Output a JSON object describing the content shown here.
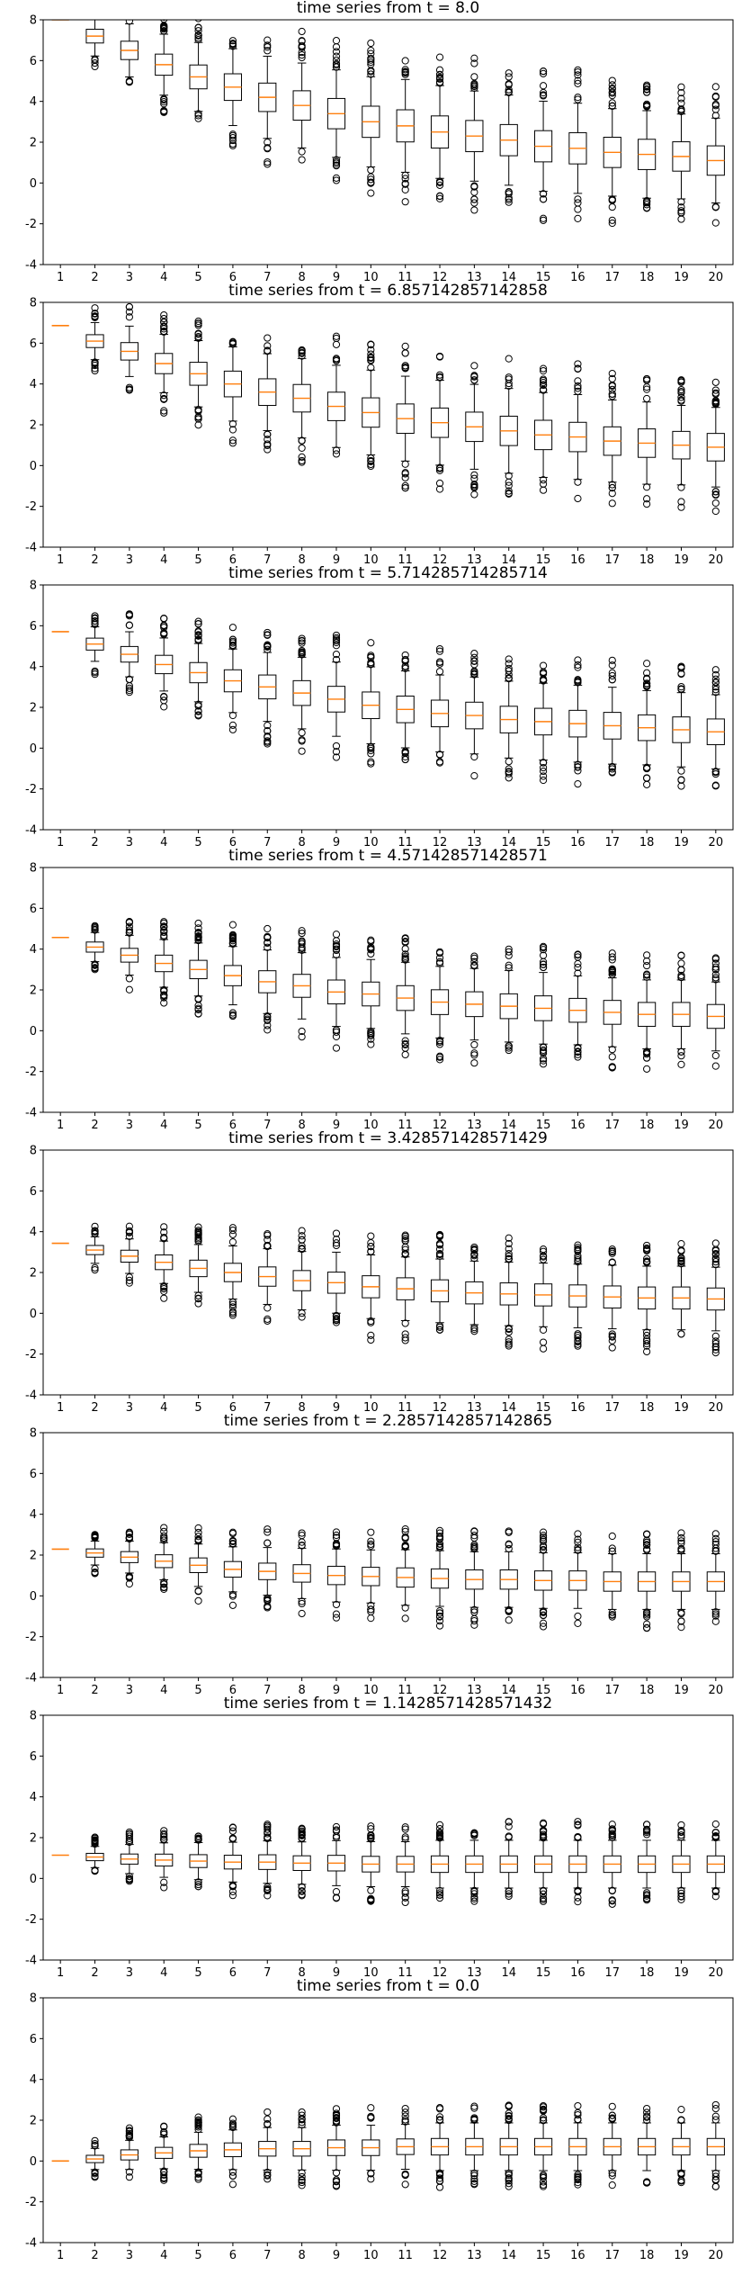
{
  "colors": {
    "box": "#000000",
    "median": "#ff7f0e",
    "frame": "#000000",
    "background": "#ffffff"
  },
  "chart_data": [
    {
      "type": "boxplot",
      "title": "time series from t = 8.0",
      "ylim": [
        -4,
        8
      ],
      "yticks": [
        -4,
        -2,
        0,
        2,
        4,
        6,
        8
      ],
      "categories": [
        "1",
        "2",
        "3",
        "4",
        "5",
        "6",
        "7",
        "8",
        "9",
        "10",
        "11",
        "12",
        "13",
        "14",
        "15",
        "16",
        "17",
        "18",
        "19",
        "20"
      ],
      "medians": [
        8.0,
        7.2,
        6.5,
        5.8,
        5.2,
        4.7,
        4.2,
        3.8,
        3.4,
        3.0,
        2.8,
        2.5,
        2.3,
        2.1,
        1.8,
        1.7,
        1.5,
        1.4,
        1.3,
        1.1
      ],
      "spread": [
        0.0,
        0.75,
        1.0,
        1.15,
        1.3,
        1.45,
        1.55,
        1.6,
        1.65,
        1.7,
        1.75,
        1.75,
        1.7,
        1.7,
        1.7,
        1.7,
        1.65,
        1.65,
        1.6,
        1.6
      ]
    },
    {
      "type": "boxplot",
      "title": "time series from t = 6.857142857142858",
      "ylim": [
        -4,
        8
      ],
      "yticks": [
        -4,
        -2,
        0,
        2,
        4,
        6,
        8
      ],
      "categories": [
        "1",
        "2",
        "3",
        "4",
        "5",
        "6",
        "7",
        "8",
        "9",
        "10",
        "11",
        "12",
        "13",
        "14",
        "15",
        "16",
        "17",
        "18",
        "19",
        "20"
      ],
      "medians": [
        6.86,
        6.1,
        5.6,
        5.0,
        4.5,
        4.0,
        3.6,
        3.3,
        2.9,
        2.6,
        2.3,
        2.1,
        1.9,
        1.7,
        1.5,
        1.4,
        1.2,
        1.1,
        1.0,
        0.9
      ],
      "spread": [
        0.0,
        0.7,
        0.95,
        1.1,
        1.25,
        1.4,
        1.45,
        1.5,
        1.55,
        1.6,
        1.6,
        1.6,
        1.6,
        1.6,
        1.6,
        1.6,
        1.55,
        1.55,
        1.5,
        1.5
      ]
    },
    {
      "type": "boxplot",
      "title": "time series from t = 5.714285714285714",
      "ylim": [
        -4,
        8
      ],
      "yticks": [
        -4,
        -2,
        0,
        2,
        4,
        6,
        8
      ],
      "categories": [
        "1",
        "2",
        "3",
        "4",
        "5",
        "6",
        "7",
        "8",
        "9",
        "10",
        "11",
        "12",
        "13",
        "14",
        "15",
        "16",
        "17",
        "18",
        "19",
        "20"
      ],
      "medians": [
        5.71,
        5.1,
        4.6,
        4.1,
        3.7,
        3.3,
        3.0,
        2.7,
        2.4,
        2.1,
        1.9,
        1.7,
        1.6,
        1.4,
        1.3,
        1.2,
        1.1,
        1.0,
        0.9,
        0.8
      ],
      "spread": [
        0.0,
        0.65,
        0.85,
        1.0,
        1.1,
        1.2,
        1.3,
        1.35,
        1.4,
        1.45,
        1.45,
        1.45,
        1.45,
        1.45,
        1.45,
        1.45,
        1.45,
        1.4,
        1.4,
        1.4
      ]
    },
    {
      "type": "boxplot",
      "title": "time series from t = 4.571428571428571",
      "ylim": [
        -4,
        8
      ],
      "yticks": [
        -4,
        -2,
        0,
        2,
        4,
        6,
        8
      ],
      "categories": [
        "1",
        "2",
        "3",
        "4",
        "5",
        "6",
        "7",
        "8",
        "9",
        "10",
        "11",
        "12",
        "13",
        "14",
        "15",
        "16",
        "17",
        "18",
        "19",
        "20"
      ],
      "medians": [
        4.57,
        4.1,
        3.7,
        3.3,
        3.0,
        2.7,
        2.4,
        2.2,
        1.9,
        1.8,
        1.6,
        1.4,
        1.3,
        1.2,
        1.1,
        1.0,
        0.9,
        0.8,
        0.8,
        0.7
      ],
      "spread": [
        0.0,
        0.55,
        0.75,
        0.9,
        1.0,
        1.1,
        1.2,
        1.25,
        1.3,
        1.3,
        1.35,
        1.35,
        1.35,
        1.35,
        1.35,
        1.3,
        1.3,
        1.3,
        1.3,
        1.3
      ]
    },
    {
      "type": "boxplot",
      "title": "time series from t = 3.428571428571429",
      "ylim": [
        -4,
        8
      ],
      "yticks": [
        -4,
        -2,
        0,
        2,
        4,
        6,
        8
      ],
      "categories": [
        "1",
        "2",
        "3",
        "4",
        "5",
        "6",
        "7",
        "8",
        "9",
        "10",
        "11",
        "12",
        "13",
        "14",
        "15",
        "16",
        "17",
        "18",
        "19",
        "20"
      ],
      "medians": [
        3.43,
        3.1,
        2.8,
        2.5,
        2.2,
        2.0,
        1.8,
        1.6,
        1.5,
        1.3,
        1.2,
        1.1,
        1.0,
        0.95,
        0.9,
        0.85,
        0.8,
        0.75,
        0.75,
        0.7
      ],
      "spread": [
        0.0,
        0.5,
        0.65,
        0.8,
        0.9,
        1.0,
        1.05,
        1.1,
        1.15,
        1.2,
        1.2,
        1.2,
        1.2,
        1.2,
        1.2,
        1.2,
        1.2,
        1.2,
        1.2,
        1.2
      ]
    },
    {
      "type": "boxplot",
      "title": "time series from t = 2.2857142857142865",
      "ylim": [
        -4,
        8
      ],
      "yticks": [
        -4,
        -2,
        0,
        2,
        4,
        6,
        8
      ],
      "categories": [
        "1",
        "2",
        "3",
        "4",
        "5",
        "6",
        "7",
        "8",
        "9",
        "10",
        "11",
        "12",
        "13",
        "14",
        "15",
        "16",
        "17",
        "18",
        "19",
        "20"
      ],
      "medians": [
        2.29,
        2.1,
        1.9,
        1.7,
        1.5,
        1.3,
        1.2,
        1.1,
        1.0,
        0.95,
        0.9,
        0.85,
        0.8,
        0.8,
        0.75,
        0.75,
        0.7,
        0.7,
        0.7,
        0.7
      ],
      "spread": [
        0.0,
        0.45,
        0.6,
        0.7,
        0.8,
        0.85,
        0.9,
        0.95,
        1.0,
        1.0,
        1.05,
        1.05,
        1.05,
        1.05,
        1.05,
        1.05,
        1.05,
        1.05,
        1.05,
        1.05
      ]
    },
    {
      "type": "boxplot",
      "title": "time series from t = 1.1428571428571432",
      "ylim": [
        -4,
        8
      ],
      "yticks": [
        -4,
        -2,
        0,
        2,
        4,
        6,
        8
      ],
      "categories": [
        "1",
        "2",
        "3",
        "4",
        "5",
        "6",
        "7",
        "8",
        "9",
        "10",
        "11",
        "12",
        "13",
        "14",
        "15",
        "16",
        "17",
        "18",
        "19",
        "20"
      ],
      "medians": [
        1.14,
        1.05,
        0.95,
        0.9,
        0.85,
        0.8,
        0.8,
        0.75,
        0.75,
        0.7,
        0.7,
        0.7,
        0.7,
        0.7,
        0.7,
        0.7,
        0.7,
        0.7,
        0.7,
        0.7
      ],
      "spread": [
        0.0,
        0.4,
        0.55,
        0.65,
        0.7,
        0.75,
        0.8,
        0.8,
        0.85,
        0.85,
        0.85,
        0.9,
        0.9,
        0.9,
        0.9,
        0.9,
        0.9,
        0.9,
        0.9,
        0.9
      ]
    },
    {
      "type": "boxplot",
      "title": "time series from t = 0.0",
      "ylim": [
        -4,
        8
      ],
      "yticks": [
        -4,
        -2,
        0,
        2,
        4,
        6,
        8
      ],
      "categories": [
        "1",
        "2",
        "3",
        "4",
        "5",
        "6",
        "7",
        "8",
        "9",
        "10",
        "11",
        "12",
        "13",
        "14",
        "15",
        "16",
        "17",
        "18",
        "19",
        "20"
      ],
      "medians": [
        0.0,
        0.1,
        0.3,
        0.4,
        0.5,
        0.55,
        0.6,
        0.6,
        0.65,
        0.65,
        0.7,
        0.7,
        0.7,
        0.7,
        0.7,
        0.7,
        0.7,
        0.7,
        0.7,
        0.7
      ],
      "spread": [
        0.0,
        0.4,
        0.55,
        0.6,
        0.7,
        0.75,
        0.8,
        0.8,
        0.85,
        0.85,
        0.85,
        0.9,
        0.9,
        0.9,
        0.9,
        0.9,
        0.9,
        0.9,
        0.9,
        0.9
      ]
    }
  ]
}
